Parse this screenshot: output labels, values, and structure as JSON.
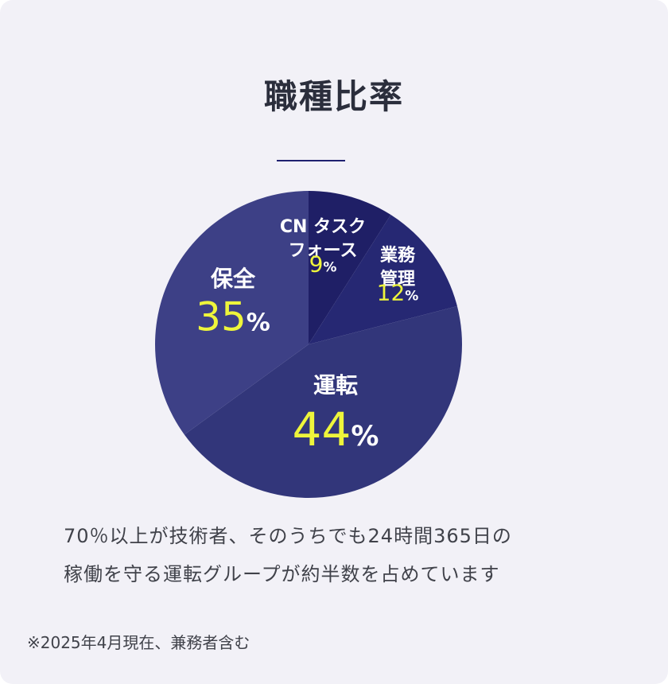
{
  "header": {
    "title": "職種比率"
  },
  "chart_data": {
    "type": "pie",
    "title": "職種比率",
    "slices": [
      {
        "label": [
          "CN タスク",
          "フォース"
        ],
        "value": 9,
        "unit": "%",
        "color": "#1f1f66"
      },
      {
        "label": [
          "業務",
          "管理"
        ],
        "value": 12,
        "unit": "%",
        "color": "#262873"
      },
      {
        "label": [
          "運転"
        ],
        "value": 44,
        "unit": "%",
        "color": "#32367a"
      },
      {
        "label": [
          "保全"
        ],
        "value": 35,
        "unit": "%",
        "color": "#3d4086"
      }
    ],
    "label_color": "#ffffff",
    "value_color": "#eef53b"
  },
  "description": {
    "line1": "70％以上が技術者、そのうちでも24時間365日の",
    "line2": "稼働を守る運転グループが約半数を占めています"
  },
  "footnote": "※2025年4月現在、兼務者含む"
}
